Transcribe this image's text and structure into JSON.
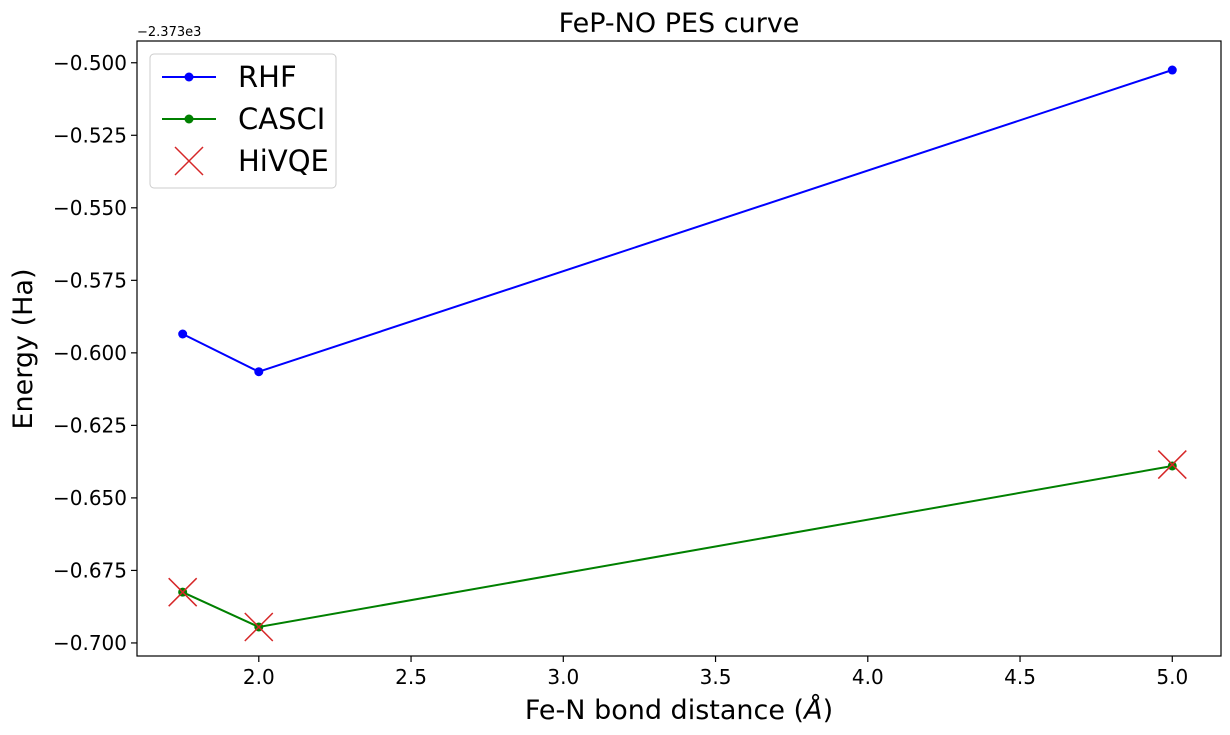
{
  "chart_data": {
    "type": "line",
    "title": "FeP-NO PES curve",
    "xlabel_main": "Fe-N bond distance (",
    "xlabel_symbol": "Å",
    "xlabel_end": ")",
    "ylabel": "Energy (Ha)",
    "y_offset_label": "−2.373e3",
    "xlim": [
      1.6,
      5.16
    ],
    "ylim": [
      -0.7045,
      -0.4925
    ],
    "x_ticks": [
      2.0,
      2.5,
      3.0,
      3.5,
      4.0,
      4.5,
      5.0
    ],
    "x_tick_labels": [
      "2.0",
      "2.5",
      "3.0",
      "3.5",
      "4.0",
      "4.5",
      "5.0"
    ],
    "y_ticks": [
      -0.5,
      -0.525,
      -0.55,
      -0.575,
      -0.6,
      -0.625,
      -0.65,
      -0.675,
      -0.7
    ],
    "y_tick_labels": [
      "−0.500",
      "−0.525",
      "−0.550",
      "−0.575",
      "−0.600",
      "−0.625",
      "−0.650",
      "−0.675",
      "−0.700"
    ],
    "series": [
      {
        "name": "RHF",
        "color": "#0000ff",
        "style": "line-marker",
        "x": [
          1.75,
          2.0,
          5.0
        ],
        "y": [
          -0.5935,
          -0.6065,
          -0.5025
        ]
      },
      {
        "name": "CASCI",
        "color": "#008000",
        "style": "line-marker",
        "x": [
          1.75,
          2.0,
          5.0
        ],
        "y": [
          -0.6825,
          -0.6945,
          -0.639
        ]
      },
      {
        "name": "HiVQE",
        "color": "#d62728",
        "style": "x-marker",
        "x": [
          1.75,
          2.0,
          5.0
        ],
        "y": [
          -0.6825,
          -0.6945,
          -0.6385
        ]
      }
    ],
    "legend_position": "top-left"
  }
}
